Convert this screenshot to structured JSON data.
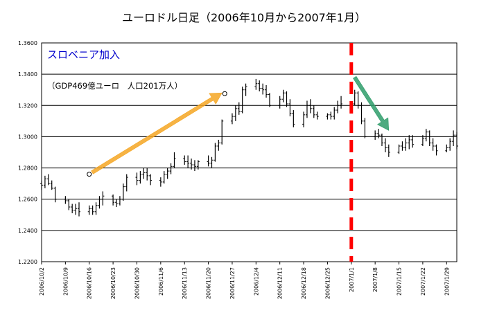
{
  "chart_data": {
    "type": "ohlc",
    "title": "ユーロドル日足（2006年10月から2007年1月）",
    "ylim": [
      1.22,
      1.36
    ],
    "ytick_values": [
      1.22,
      1.24,
      1.26,
      1.28,
      1.3,
      1.32,
      1.34,
      1.36
    ],
    "ytick_labels": [
      "1.2200",
      "1.2400",
      "1.2600",
      "1.2800",
      "1.3000",
      "1.3200",
      "1.3400",
      "1.3600"
    ],
    "xtick_labels": [
      "2006/10/2",
      "2006/10/9",
      "2006/10/16",
      "2006/10/23",
      "2006/10/30",
      "2006/11/6",
      "2006/11/13",
      "2006/11/20",
      "2006/11/27",
      "2006/12/4",
      "2006/12/11",
      "2006/12/18",
      "2006/12/25",
      "2007/1/1",
      "2007/1/8",
      "2007/1/15",
      "2007/1/22",
      "2007/1/29"
    ],
    "grid": "horizontal",
    "ohlc": [
      [
        "2006/10/2",
        1.27,
        1.272,
        1.266,
        1.269
      ],
      [
        "2006/10/3",
        1.269,
        1.275,
        1.267,
        1.273
      ],
      [
        "2006/10/4",
        1.273,
        1.276,
        1.269,
        1.27
      ],
      [
        "2006/10/5",
        1.27,
        1.272,
        1.266,
        1.267
      ],
      [
        "2006/10/6",
        1.267,
        1.268,
        1.258,
        1.26
      ],
      [
        "2006/10/9",
        1.26,
        1.262,
        1.257,
        1.259
      ],
      [
        "2006/10/10",
        1.259,
        1.26,
        1.253,
        1.255
      ],
      [
        "2006/10/11",
        1.255,
        1.257,
        1.251,
        1.253
      ],
      [
        "2006/10/12",
        1.253,
        1.257,
        1.25,
        1.254
      ],
      [
        "2006/10/13",
        1.254,
        1.258,
        1.249,
        1.252
      ],
      [
        "2006/10/16",
        1.252,
        1.256,
        1.25,
        1.254
      ],
      [
        "2006/10/17",
        1.254,
        1.256,
        1.25,
        1.252
      ],
      [
        "2006/10/18",
        1.252,
        1.258,
        1.25,
        1.256
      ],
      [
        "2006/10/19",
        1.256,
        1.262,
        1.254,
        1.26
      ],
      [
        "2006/10/20",
        1.26,
        1.265,
        1.256,
        1.262
      ],
      [
        "2006/10/23",
        1.262,
        1.263,
        1.256,
        1.258
      ],
      [
        "2006/10/24",
        1.258,
        1.26,
        1.255,
        1.257
      ],
      [
        "2006/10/25",
        1.257,
        1.262,
        1.256,
        1.26
      ],
      [
        "2006/10/26",
        1.26,
        1.27,
        1.259,
        1.268
      ],
      [
        "2006/10/27",
        1.268,
        1.276,
        1.265,
        1.274
      ],
      [
        "2006/10/30",
        1.274,
        1.277,
        1.269,
        1.272
      ],
      [
        "2006/10/31",
        1.272,
        1.278,
        1.27,
        1.276
      ],
      [
        "2006/11/1",
        1.276,
        1.28,
        1.273,
        1.277
      ],
      [
        "2006/11/2",
        1.277,
        1.28,
        1.272,
        1.275
      ],
      [
        "2006/11/3",
        1.275,
        1.276,
        1.269,
        1.272
      ],
      [
        "2006/11/6",
        1.272,
        1.274,
        1.268,
        1.271
      ],
      [
        "2006/11/7",
        1.271,
        1.278,
        1.27,
        1.276
      ],
      [
        "2006/11/8",
        1.276,
        1.28,
        1.273,
        1.278
      ],
      [
        "2006/11/9",
        1.278,
        1.283,
        1.276,
        1.281
      ],
      [
        "2006/11/10",
        1.281,
        1.29,
        1.28,
        1.286
      ],
      [
        "2006/11/13",
        1.286,
        1.288,
        1.282,
        1.284
      ],
      [
        "2006/11/14",
        1.284,
        1.288,
        1.28,
        1.283
      ],
      [
        "2006/11/15",
        1.283,
        1.286,
        1.279,
        1.282
      ],
      [
        "2006/11/16",
        1.282,
        1.285,
        1.278,
        1.281
      ],
      [
        "2006/11/17",
        1.281,
        1.285,
        1.279,
        1.284
      ],
      [
        "2006/11/20",
        1.284,
        1.288,
        1.281,
        1.283
      ],
      [
        "2006/11/21",
        1.283,
        1.287,
        1.28,
        1.285
      ],
      [
        "2006/11/22",
        1.285,
        1.296,
        1.284,
        1.294
      ],
      [
        "2006/11/23",
        1.294,
        1.298,
        1.291,
        1.296
      ],
      [
        "2006/11/24",
        1.296,
        1.311,
        1.295,
        1.31
      ],
      [
        "2006/11/27",
        1.31,
        1.315,
        1.308,
        1.313
      ],
      [
        "2006/11/28",
        1.313,
        1.32,
        1.31,
        1.318
      ],
      [
        "2006/11/29",
        1.318,
        1.322,
        1.314,
        1.316
      ],
      [
        "2006/11/30",
        1.316,
        1.332,
        1.315,
        1.33
      ],
      [
        "2006/12/1",
        1.33,
        1.334,
        1.326,
        1.332
      ],
      [
        "2006/12/4",
        1.332,
        1.337,
        1.33,
        1.334
      ],
      [
        "2006/12/5",
        1.334,
        1.336,
        1.329,
        1.331
      ],
      [
        "2006/12/6",
        1.331,
        1.334,
        1.327,
        1.33
      ],
      [
        "2006/12/7",
        1.33,
        1.333,
        1.325,
        1.327
      ],
      [
        "2006/12/8",
        1.327,
        1.328,
        1.319,
        1.32
      ],
      [
        "2006/12/11",
        1.32,
        1.326,
        1.318,
        1.324
      ],
      [
        "2006/12/12",
        1.324,
        1.33,
        1.322,
        1.328
      ],
      [
        "2006/12/13",
        1.328,
        1.329,
        1.319,
        1.321
      ],
      [
        "2006/12/14",
        1.321,
        1.324,
        1.313,
        1.315
      ],
      [
        "2006/12/15",
        1.315,
        1.317,
        1.306,
        1.308
      ],
      [
        "2006/12/18",
        1.308,
        1.316,
        1.306,
        1.314
      ],
      [
        "2006/12/19",
        1.314,
        1.323,
        1.312,
        1.32
      ],
      [
        "2006/12/20",
        1.32,
        1.324,
        1.315,
        1.318
      ],
      [
        "2006/12/21",
        1.318,
        1.32,
        1.312,
        1.314
      ],
      [
        "2006/12/22",
        1.314,
        1.316,
        1.311,
        1.313
      ],
      [
        "2006/12/25",
        1.313,
        1.315,
        1.311,
        1.314
      ],
      [
        "2006/12/26",
        1.314,
        1.316,
        1.311,
        1.313
      ],
      [
        "2006/12/27",
        1.313,
        1.319,
        1.311,
        1.317
      ],
      [
        "2006/12/28",
        1.317,
        1.323,
        1.315,
        1.32
      ],
      [
        "2006/12/29",
        1.32,
        1.326,
        1.318,
        1.321
      ],
      [
        "2007/1/2",
        1.321,
        1.33,
        1.32,
        1.328
      ],
      [
        "2007/1/3",
        1.328,
        1.329,
        1.318,
        1.32
      ],
      [
        "2007/1/4",
        1.32,
        1.322,
        1.308,
        1.31
      ],
      [
        "2007/1/5",
        1.31,
        1.312,
        1.299,
        1.3
      ],
      [
        "2007/1/8",
        1.3,
        1.304,
        1.298,
        1.302
      ],
      [
        "2007/1/9",
        1.302,
        1.305,
        1.299,
        1.301
      ],
      [
        "2007/1/10",
        1.301,
        1.302,
        1.294,
        1.296
      ],
      [
        "2007/1/11",
        1.296,
        1.299,
        1.29,
        1.293
      ],
      [
        "2007/1/12",
        1.293,
        1.295,
        1.287,
        1.29
      ],
      [
        "2007/1/15",
        1.29,
        1.295,
        1.289,
        1.294
      ],
      [
        "2007/1/16",
        1.294,
        1.297,
        1.291,
        1.293
      ],
      [
        "2007/1/17",
        1.293,
        1.299,
        1.291,
        1.296
      ],
      [
        "2007/1/18",
        1.296,
        1.301,
        1.292,
        1.298
      ],
      [
        "2007/1/19",
        1.298,
        1.301,
        1.293,
        1.295
      ],
      [
        "2007/1/22",
        1.295,
        1.301,
        1.294,
        1.299
      ],
      [
        "2007/1/23",
        1.299,
        1.305,
        1.297,
        1.303
      ],
      [
        "2007/1/24",
        1.303,
        1.304,
        1.294,
        1.296
      ],
      [
        "2007/1/25",
        1.296,
        1.299,
        1.291,
        1.294
      ],
      [
        "2007/1/26",
        1.294,
        1.295,
        1.288,
        1.291
      ],
      [
        "2007/1/29",
        1.291,
        1.295,
        1.29,
        1.293
      ],
      [
        "2007/1/30",
        1.293,
        1.299,
        1.291,
        1.297
      ],
      [
        "2007/1/31",
        1.297,
        1.304,
        1.294,
        1.301
      ],
      [
        "2007/2/1",
        1.301,
        1.303,
        1.292,
        1.294
      ]
    ],
    "event_marker": {
      "date": "2007/1/1",
      "color": "#ff0000",
      "style": "dashed"
    },
    "annotations": {
      "event_label": "スロベニア加入",
      "event_label_color": "#0000cc",
      "event_detail": "（GDP469億ユーロ　人口201万人）",
      "event_detail_color": "#000000"
    },
    "trend_arrows": [
      {
        "from": [
          "2006/10/16",
          1.276
        ],
        "to": [
          "2006/11/24",
          1.328
        ],
        "color": "#f5a623"
      },
      {
        "from": [
          "2007/1/2",
          1.338
        ],
        "to": [
          "2007/1/12",
          1.304
        ],
        "color": "#2e9c6a"
      }
    ],
    "colors": {
      "bar": "#000000",
      "grid": "#000000",
      "background": "#ffffff"
    }
  }
}
